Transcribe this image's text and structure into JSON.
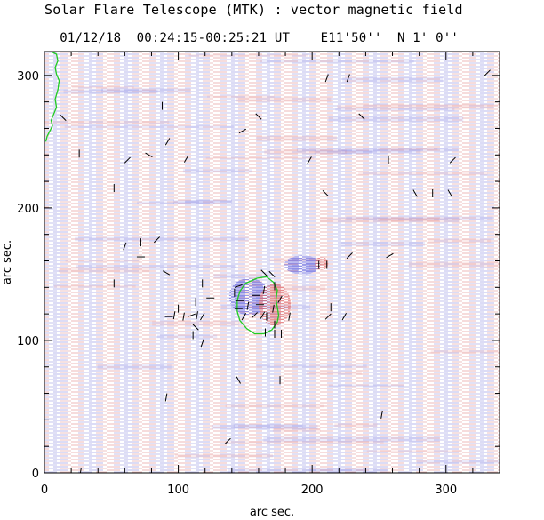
{
  "header": {
    "title": "Solar Flare Telescope (MTK) : vector magnetic field",
    "date": "01/12/18",
    "time_range": "00:24:15-00:25:21 UT",
    "position_ew": "E11'50''",
    "position_ns": "N 1' 0''"
  },
  "chart_data": {
    "type": "heatmap",
    "title": "Solar Flare Telescope (MTK) : vector magnetic field",
    "xlabel": "arc sec.",
    "ylabel": "arc sec.",
    "xlim": [
      0,
      340
    ],
    "ylim": [
      0,
      318
    ],
    "xticks": [
      0,
      100,
      200,
      300
    ],
    "yticks": [
      0,
      100,
      200,
      300
    ],
    "colors": {
      "positive_polarity": "#e06666",
      "negative_polarity": "#6666e0",
      "contour": "#22cc22",
      "vector": "#000000"
    },
    "field_regions": [
      {
        "name": "negative-spot",
        "polarity": "negative",
        "x": 153,
        "y": 133,
        "rx": 15,
        "ry": 14
      },
      {
        "name": "positive-spot",
        "polarity": "positive",
        "x": 172,
        "y": 127,
        "rx": 12,
        "ry": 16
      },
      {
        "name": "negative-patch-upper",
        "polarity": "negative",
        "x": 193,
        "y": 157,
        "rx": 14,
        "ry": 7
      },
      {
        "name": "positive-patch-small",
        "polarity": "positive",
        "x": 207,
        "y": 158,
        "rx": 5,
        "ry": 5
      }
    ],
    "contour_spot": [
      [
        159,
        147
      ],
      [
        166,
        148
      ],
      [
        171,
        144
      ],
      [
        174,
        138
      ],
      [
        173,
        131
      ],
      [
        174,
        125
      ],
      [
        175,
        119
      ],
      [
        174,
        114
      ],
      [
        170,
        108
      ],
      [
        164,
        105
      ],
      [
        157,
        105
      ],
      [
        151,
        109
      ],
      [
        146,
        115
      ],
      [
        144,
        122
      ],
      [
        144,
        130
      ],
      [
        146,
        137
      ],
      [
        150,
        143
      ],
      [
        159,
        147
      ]
    ],
    "contour_edge": [
      [
        5,
        318
      ],
      [
        9,
        316
      ],
      [
        10,
        311
      ],
      [
        8,
        306
      ],
      [
        9,
        301
      ],
      [
        11,
        296
      ],
      [
        10,
        289
      ],
      [
        8,
        282
      ],
      [
        9,
        276
      ],
      [
        7,
        271
      ],
      [
        5,
        266
      ],
      [
        6,
        262
      ],
      [
        4,
        258
      ],
      [
        2,
        254
      ],
      [
        1,
        250
      ]
    ],
    "vectors": [
      {
        "x": 27,
        "y": 1,
        "angle": 80
      },
      {
        "x": 14,
        "y": 268,
        "angle": -45
      },
      {
        "x": 26,
        "y": 241,
        "angle": 90
      },
      {
        "x": 52,
        "y": 215,
        "angle": 90
      },
      {
        "x": 62,
        "y": 236,
        "angle": 45
      },
      {
        "x": 78,
        "y": 240,
        "angle": -30
      },
      {
        "x": 88,
        "y": 277,
        "angle": 90
      },
      {
        "x": 92,
        "y": 250,
        "angle": 60
      },
      {
        "x": 106,
        "y": 237,
        "angle": 60
      },
      {
        "x": 148,
        "y": 258,
        "angle": 30
      },
      {
        "x": 160,
        "y": 269,
        "angle": -45
      },
      {
        "x": 198,
        "y": 236,
        "angle": 60
      },
      {
        "x": 210,
        "y": 211,
        "angle": -45
      },
      {
        "x": 211,
        "y": 298,
        "angle": 70
      },
      {
        "x": 227,
        "y": 298,
        "angle": 70
      },
      {
        "x": 237,
        "y": 269,
        "angle": -45
      },
      {
        "x": 257,
        "y": 236,
        "angle": 90
      },
      {
        "x": 277,
        "y": 211,
        "angle": -60
      },
      {
        "x": 290,
        "y": 211,
        "angle": 90
      },
      {
        "x": 303,
        "y": 211,
        "angle": -60
      },
      {
        "x": 305,
        "y": 236,
        "angle": 45
      },
      {
        "x": 331,
        "y": 302,
        "angle": 45
      },
      {
        "x": 60,
        "y": 171,
        "angle": 70
      },
      {
        "x": 72,
        "y": 174,
        "angle": 90
      },
      {
        "x": 72,
        "y": 163,
        "angle": 0
      },
      {
        "x": 84,
        "y": 176,
        "angle": 45
      },
      {
        "x": 52,
        "y": 143,
        "angle": 90
      },
      {
        "x": 91,
        "y": 151,
        "angle": -30
      },
      {
        "x": 93,
        "y": 118,
        "angle": 0
      },
      {
        "x": 97,
        "y": 119,
        "angle": 80
      },
      {
        "x": 100,
        "y": 124,
        "angle": 90
      },
      {
        "x": 104,
        "y": 118,
        "angle": 80
      },
      {
        "x": 110,
        "y": 119,
        "angle": 20
      },
      {
        "x": 114,
        "y": 119,
        "angle": 80
      },
      {
        "x": 118,
        "y": 118,
        "angle": 60
      },
      {
        "x": 113,
        "y": 110,
        "angle": -45
      },
      {
        "x": 111,
        "y": 104,
        "angle": 90
      },
      {
        "x": 118,
        "y": 98,
        "angle": 70
      },
      {
        "x": 113,
        "y": 129,
        "angle": 90
      },
      {
        "x": 118,
        "y": 143,
        "angle": 90
      },
      {
        "x": 124,
        "y": 132,
        "angle": 0
      },
      {
        "x": 142,
        "y": 136,
        "angle": 90
      },
      {
        "x": 145,
        "y": 141,
        "angle": 20
      },
      {
        "x": 146,
        "y": 130,
        "angle": 0
      },
      {
        "x": 145,
        "y": 124,
        "angle": 0
      },
      {
        "x": 149,
        "y": 118,
        "angle": 60
      },
      {
        "x": 152,
        "y": 126,
        "angle": 80
      },
      {
        "x": 157,
        "y": 119,
        "angle": 45
      },
      {
        "x": 161,
        "y": 127,
        "angle": 0
      },
      {
        "x": 163,
        "y": 119,
        "angle": 60
      },
      {
        "x": 158,
        "y": 134,
        "angle": 0
      },
      {
        "x": 164,
        "y": 138,
        "angle": 80
      },
      {
        "x": 164,
        "y": 151,
        "angle": -45
      },
      {
        "x": 170,
        "y": 150,
        "angle": -45
      },
      {
        "x": 172,
        "y": 141,
        "angle": 90
      },
      {
        "x": 176,
        "y": 131,
        "angle": 60
      },
      {
        "x": 171,
        "y": 124,
        "angle": 80
      },
      {
        "x": 166,
        "y": 118,
        "angle": 90
      },
      {
        "x": 179,
        "y": 124,
        "angle": 90
      },
      {
        "x": 183,
        "y": 118,
        "angle": 80
      },
      {
        "x": 172,
        "y": 112,
        "angle": 90
      },
      {
        "x": 165,
        "y": 106,
        "angle": 90
      },
      {
        "x": 172,
        "y": 105,
        "angle": 90
      },
      {
        "x": 177,
        "y": 105,
        "angle": 90
      },
      {
        "x": 205,
        "y": 157,
        "angle": 90
      },
      {
        "x": 211,
        "y": 157,
        "angle": 90
      },
      {
        "x": 214,
        "y": 125,
        "angle": 90
      },
      {
        "x": 228,
        "y": 164,
        "angle": 45
      },
      {
        "x": 212,
        "y": 118,
        "angle": 45
      },
      {
        "x": 224,
        "y": 118,
        "angle": 60
      },
      {
        "x": 258,
        "y": 164,
        "angle": 30
      },
      {
        "x": 145,
        "y": 70,
        "angle": -60
      },
      {
        "x": 176,
        "y": 70,
        "angle": 90
      },
      {
        "x": 91,
        "y": 57,
        "angle": 80
      },
      {
        "x": 137,
        "y": 24,
        "angle": 45
      },
      {
        "x": 252,
        "y": 44,
        "angle": 80
      }
    ]
  }
}
